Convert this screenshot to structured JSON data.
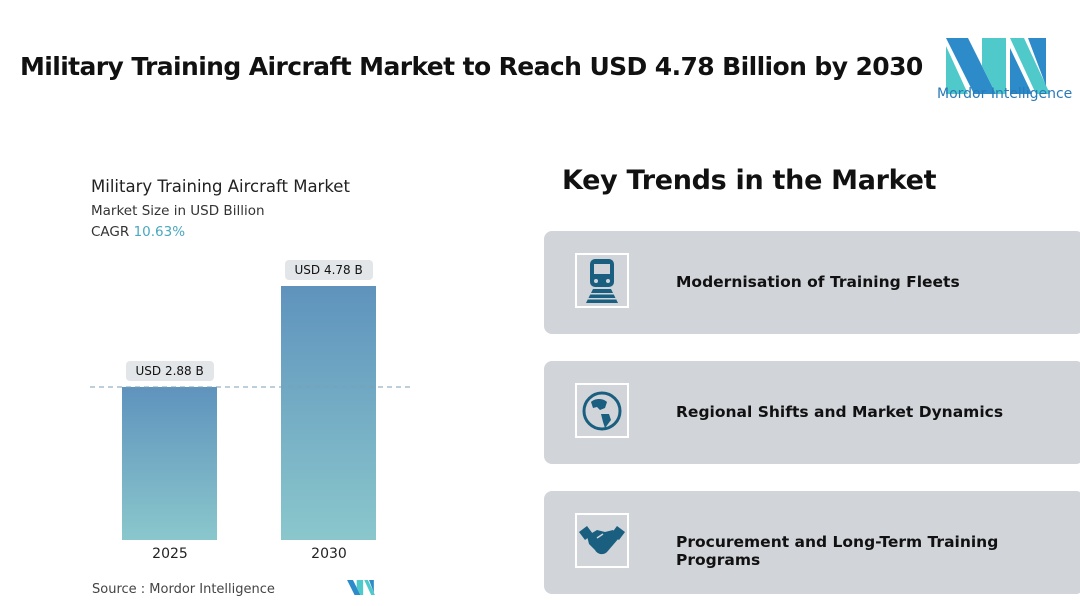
{
  "header": {
    "title": "Military Training Aircraft Market to Reach USD 4.78 Billion by 2030",
    "logo_text": "Mordor Intelligence"
  },
  "chart_data": {
    "type": "bar",
    "title": "Military Training Aircraft Market",
    "subtitle": "Market Size in USD Billion",
    "cagr_label": "CAGR",
    "cagr_value": "10.63%",
    "categories": [
      "2025",
      "2030"
    ],
    "values": [
      2.88,
      4.78
    ],
    "data_labels": [
      "USD 2.88 B",
      "USD 4.78 B"
    ],
    "ylim": [
      0,
      4.78
    ],
    "reference_line": 2.88,
    "colors": {
      "bar_top": "#5f93bd",
      "bar_bottom": "#8ac7cc"
    }
  },
  "source": "Source :  Mordor Intelligence",
  "trends": {
    "title": "Key Trends in the Market",
    "items": [
      {
        "label": "Modernisation of Training Fleets",
        "icon": "train-icon"
      },
      {
        "label": "Regional Shifts and Market Dynamics",
        "icon": "globe-icon"
      },
      {
        "label": "Procurement and Long-Term Training Programs",
        "icon": "handshake-icon"
      }
    ]
  },
  "colors": {
    "icon": "#1b5f80",
    "card": "#d1d5da"
  }
}
